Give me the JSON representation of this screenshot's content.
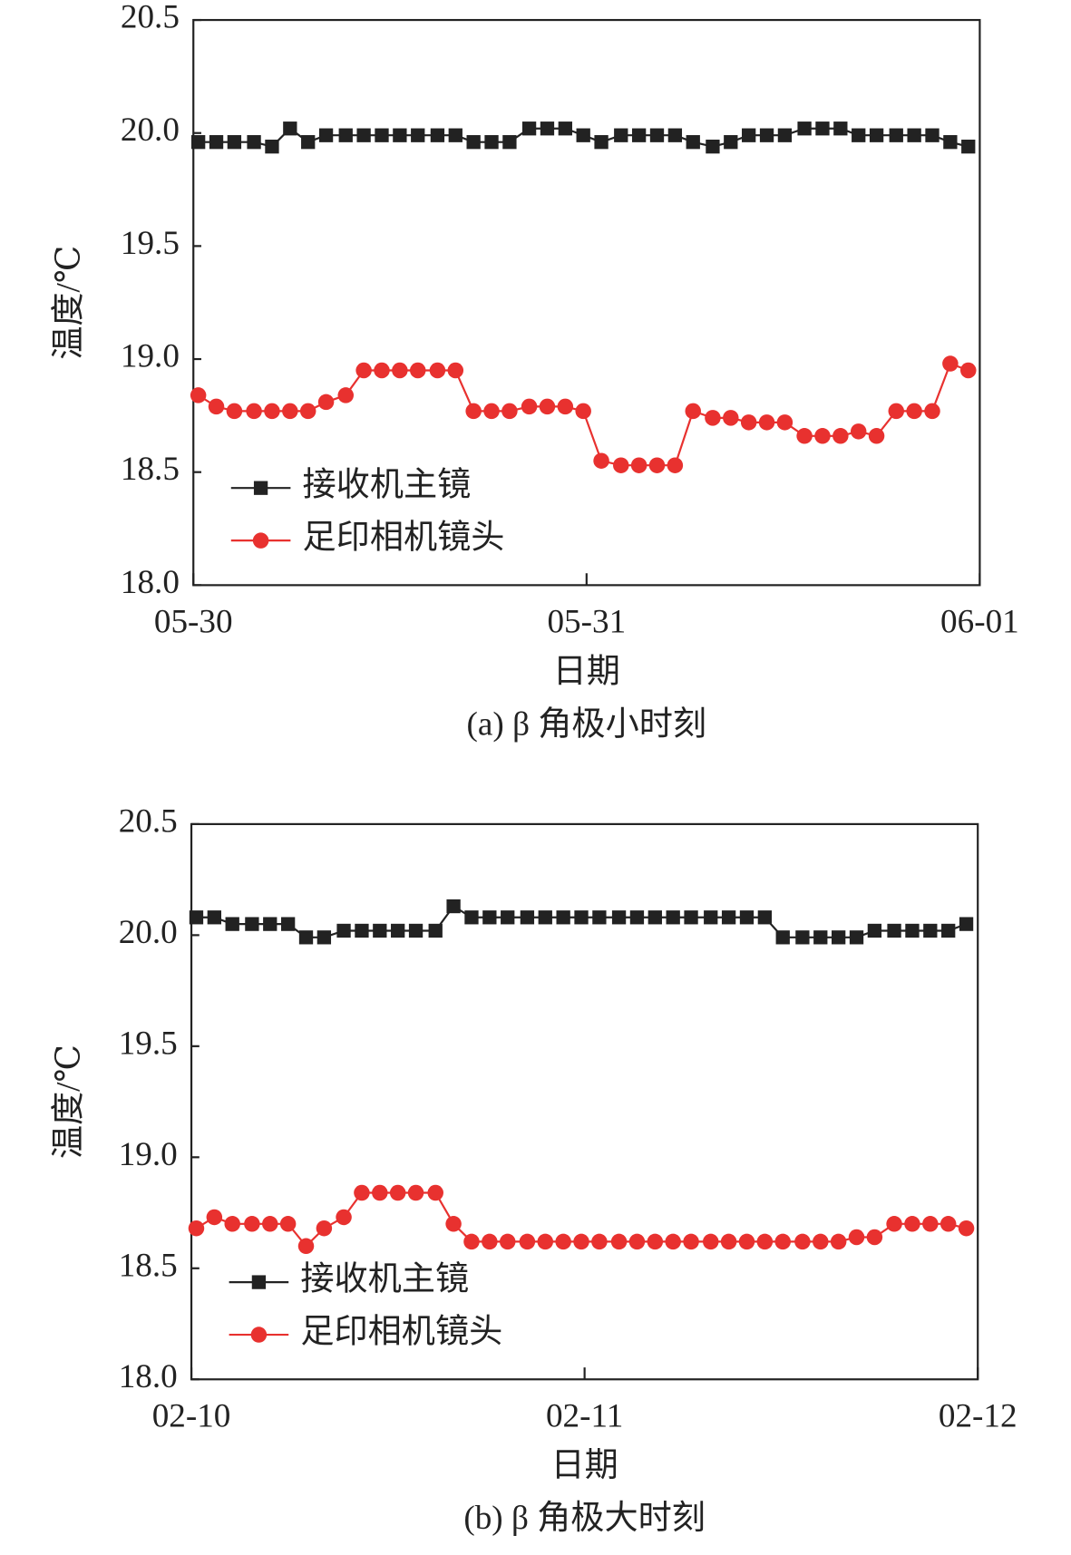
{
  "chart_data": [
    {
      "type": "line",
      "caption": "(a) β 角极小时刻",
      "x_label": "日期",
      "y_label": "温度/℃",
      "x": [
        0.3,
        1.4,
        2.5,
        3.7,
        4.8,
        5.9,
        7.0,
        8.1,
        9.3,
        10.4,
        11.5,
        12.6,
        13.7,
        14.9,
        16.0,
        17.1,
        18.2,
        19.3,
        20.5,
        21.6,
        22.7,
        23.8,
        24.9,
        26.1,
        27.2,
        28.3,
        29.4,
        30.5,
        31.7,
        32.8,
        33.9,
        35.0,
        36.1,
        37.3,
        38.4,
        39.5,
        40.6,
        41.7,
        42.9,
        44.0,
        45.1,
        46.2,
        47.3
      ],
      "series": [
        {
          "name": "接收机主镜",
          "color": "#222222",
          "marker": "square",
          "values": [
            19.96,
            19.96,
            19.96,
            19.96,
            19.94,
            20.02,
            19.96,
            19.99,
            19.99,
            19.99,
            19.99,
            19.99,
            19.99,
            19.99,
            19.99,
            19.96,
            19.96,
            19.96,
            20.02,
            20.02,
            20.02,
            19.99,
            19.96,
            19.99,
            19.99,
            19.99,
            19.99,
            19.96,
            19.94,
            19.96,
            19.99,
            19.99,
            19.99,
            20.02,
            20.02,
            20.02,
            19.99,
            19.99,
            19.99,
            19.99,
            19.99,
            19.96,
            19.94
          ]
        },
        {
          "name": "足印相机镜头",
          "color": "#e8312f",
          "marker": "circle",
          "values": [
            18.84,
            18.79,
            18.77,
            18.77,
            18.77,
            18.77,
            18.77,
            18.81,
            18.84,
            18.95,
            18.95,
            18.95,
            18.95,
            18.95,
            18.95,
            18.77,
            18.77,
            18.77,
            18.79,
            18.79,
            18.79,
            18.77,
            18.55,
            18.53,
            18.53,
            18.53,
            18.53,
            18.77,
            18.74,
            18.74,
            18.72,
            18.72,
            18.72,
            18.66,
            18.66,
            18.66,
            18.68,
            18.66,
            18.77,
            18.77,
            18.77,
            18.98,
            18.95
          ]
        }
      ],
      "xlim": [
        0,
        48
      ],
      "xticks": [
        {
          "value": 0,
          "label": "05-30"
        },
        {
          "value": 24,
          "label": "05-31"
        },
        {
          "value": 48,
          "label": "06-01"
        }
      ],
      "ylim": [
        18,
        20.5
      ],
      "yticks": [
        {
          "value": 18,
          "label": "18.0"
        },
        18.5,
        {
          "value": 19,
          "label": "19.0"
        },
        19.5,
        {
          "value": 20,
          "label": "20.0"
        },
        20.5
      ]
    },
    {
      "type": "line",
      "caption": "(b) β 角极大时刻",
      "x_label": "日期",
      "y_label": "温度/℃",
      "x": [
        0.3,
        1.4,
        2.5,
        3.7,
        4.8,
        5.9,
        7.0,
        8.1,
        9.3,
        10.4,
        11.5,
        12.6,
        13.7,
        14.9,
        16.0,
        17.1,
        18.2,
        19.3,
        20.5,
        21.6,
        22.7,
        23.8,
        24.9,
        26.1,
        27.2,
        28.3,
        29.4,
        30.5,
        31.7,
        32.8,
        33.9,
        35.0,
        36.1,
        37.3,
        38.4,
        39.5,
        40.6,
        41.7,
        42.9,
        44.0,
        45.1,
        46.2,
        47.3
      ],
      "series": [
        {
          "name": "接收机主镜",
          "color": "#222222",
          "marker": "square",
          "values": [
            20.08,
            20.08,
            20.05,
            20.05,
            20.05,
            20.05,
            19.99,
            19.99,
            20.02,
            20.02,
            20.02,
            20.02,
            20.02,
            20.02,
            20.13,
            20.08,
            20.08,
            20.08,
            20.08,
            20.08,
            20.08,
            20.08,
            20.08,
            20.08,
            20.08,
            20.08,
            20.08,
            20.08,
            20.08,
            20.08,
            20.08,
            20.08,
            19.99,
            19.99,
            19.99,
            19.99,
            19.99,
            20.02,
            20.02,
            20.02,
            20.02,
            20.02,
            20.05
          ]
        },
        {
          "name": "足印相机镜头",
          "color": "#e8312f",
          "marker": "circle",
          "values": [
            18.68,
            18.73,
            18.7,
            18.7,
            18.7,
            18.7,
            18.6,
            18.68,
            18.73,
            18.84,
            18.84,
            18.84,
            18.84,
            18.84,
            18.7,
            18.62,
            18.62,
            18.62,
            18.62,
            18.62,
            18.62,
            18.62,
            18.62,
            18.62,
            18.62,
            18.62,
            18.62,
            18.62,
            18.62,
            18.62,
            18.62,
            18.62,
            18.62,
            18.62,
            18.62,
            18.62,
            18.64,
            18.64,
            18.7,
            18.7,
            18.7,
            18.7,
            18.68
          ]
        }
      ],
      "xlim": [
        0,
        48
      ],
      "xticks": [
        {
          "value": 0,
          "label": "02-10"
        },
        {
          "value": 24,
          "label": "02-11"
        },
        {
          "value": 48,
          "label": "02-12"
        }
      ],
      "ylim": [
        18,
        20.5
      ],
      "yticks": [
        {
          "value": 18,
          "label": "18.0"
        },
        18.5,
        {
          "value": 19,
          "label": "19.0"
        },
        19.5,
        {
          "value": 20,
          "label": "20.0"
        },
        20.5
      ]
    }
  ]
}
